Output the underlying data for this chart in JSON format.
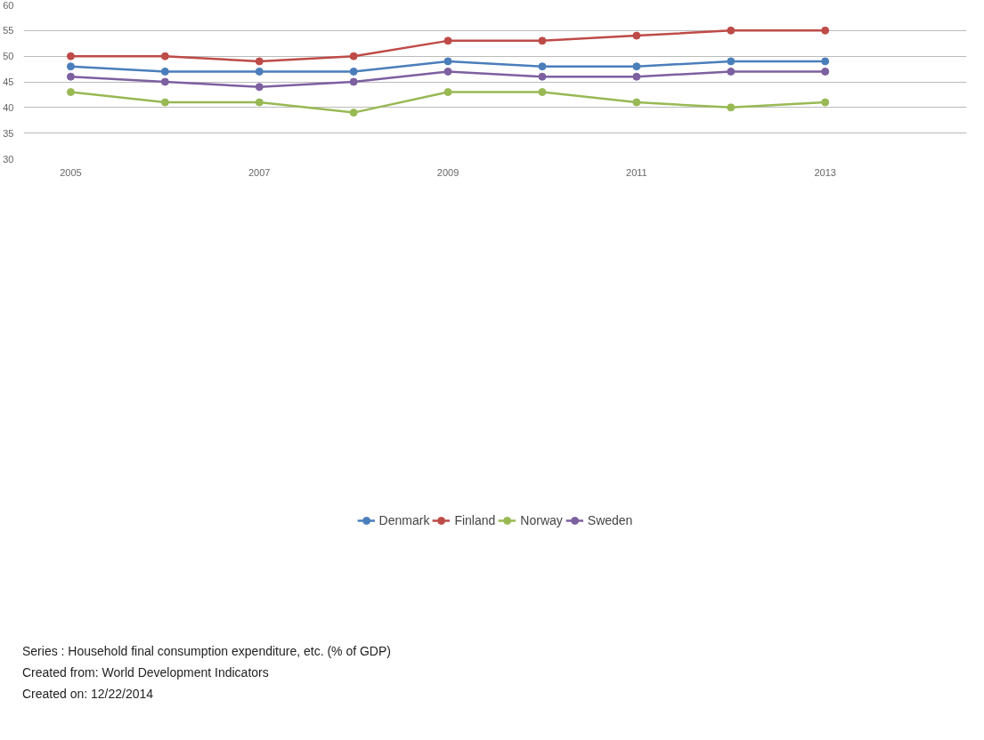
{
  "chart_data": {
    "type": "line",
    "x": [
      2005,
      2006,
      2007,
      2008,
      2009,
      2010,
      2011,
      2012,
      2013
    ],
    "series": [
      {
        "name": "Denmark",
        "color": "#4a7ebb",
        "values": [
          48,
          47,
          47,
          47,
          49,
          48,
          48,
          49,
          49
        ]
      },
      {
        "name": "Finland",
        "color": "#be4b48",
        "values": [
          50,
          50,
          49,
          50,
          53,
          53,
          54,
          55,
          55
        ]
      },
      {
        "name": "Norway",
        "color": "#98b954",
        "values": [
          43,
          41,
          41,
          39,
          43,
          43,
          41,
          40,
          41
        ]
      },
      {
        "name": "Sweden",
        "color": "#7d60a0",
        "values": [
          46,
          45,
          44,
          45,
          47,
          46,
          46,
          47,
          47
        ]
      }
    ],
    "xlim": [
      2004.5,
      2014.5
    ],
    "xticks": [
      2005,
      2007,
      2009,
      2011,
      2013
    ],
    "ylim": [
      30,
      60
    ],
    "yticks": [
      30,
      35,
      40,
      45,
      50,
      55,
      60
    ],
    "grid": "y",
    "legend": "bottom",
    "marker": "circle",
    "line_style": "solid",
    "annotations": [
      "Series : Household final consumption expenditure, etc. (% of GDP)",
      "Created from: World Development Indicators",
      "Created on: 12/22/2014"
    ]
  }
}
